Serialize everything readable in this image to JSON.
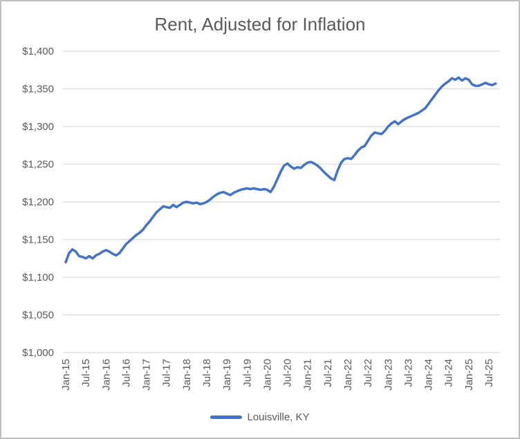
{
  "title": "Rent, Adjusted for Inflation",
  "legend": {
    "label": "Louisville, KY"
  },
  "colors": {
    "line": "#4472C4",
    "text": "#595959",
    "gridline": "#D9D9D9",
    "frame_border": "#BFBFBF",
    "background": "#FFFFFF"
  },
  "chart_data": {
    "type": "line",
    "title": "Rent, Adjusted for Inflation",
    "xlabel": "",
    "ylabel": "",
    "grid": "horizontal-only",
    "legend_position": "bottom",
    "ylim": [
      1000,
      1400
    ],
    "y_tick_step": 50,
    "y_tick_labels": [
      "$1,000",
      "$1,050",
      "$1,100",
      "$1,150",
      "$1,200",
      "$1,250",
      "$1,300",
      "$1,350",
      "$1,400"
    ],
    "x_unit": "month",
    "x_start_label": "Jan-15",
    "x_end_label": "Jul-25",
    "x_tick_every_months": 6,
    "x_tick_labels": [
      "Jan-15",
      "Jul-15",
      "Jan-16",
      "Jul-16",
      "Jan-17",
      "Jul-17",
      "Jan-18",
      "Jul-18",
      "Jan-19",
      "Jul-19",
      "Jan-20",
      "Jul-20",
      "Jan-21",
      "Jul-21",
      "Jan-22",
      "Jul-22",
      "Jan-23",
      "Jul-23",
      "Jan-24",
      "Jul-24",
      "Jan-25",
      "Jul-25"
    ],
    "series": [
      {
        "name": "Louisville, KY",
        "first_month": "Jan-2015",
        "values": [
          1120,
          1132,
          1137,
          1134,
          1128,
          1127,
          1125,
          1128,
          1125,
          1129,
          1131,
          1134,
          1136,
          1134,
          1131,
          1129,
          1132,
          1138,
          1144,
          1148,
          1152,
          1156,
          1159,
          1163,
          1169,
          1174,
          1180,
          1186,
          1190,
          1194,
          1193,
          1192,
          1196,
          1193,
          1196,
          1199,
          1200,
          1199,
          1198,
          1199,
          1197,
          1198,
          1200,
          1203,
          1207,
          1210,
          1212,
          1213,
          1211,
          1209,
          1212,
          1214,
          1216,
          1217,
          1218,
          1217,
          1218,
          1217,
          1216,
          1217,
          1216,
          1213,
          1220,
          1230,
          1240,
          1248,
          1251,
          1247,
          1244,
          1246,
          1245,
          1249,
          1252,
          1253,
          1251,
          1248,
          1244,
          1239,
          1235,
          1231,
          1229,
          1242,
          1252,
          1257,
          1258,
          1257,
          1262,
          1268,
          1272,
          1274,
          1281,
          1288,
          1292,
          1291,
          1290,
          1294,
          1300,
          1304,
          1307,
          1303,
          1307,
          1310,
          1312,
          1314,
          1316,
          1318,
          1321,
          1324,
          1330,
          1336,
          1342,
          1348,
          1353,
          1357,
          1360,
          1364,
          1362,
          1365,
          1361,
          1364,
          1362,
          1356,
          1354,
          1354,
          1356,
          1358,
          1356,
          1355,
          1357
        ]
      }
    ]
  }
}
